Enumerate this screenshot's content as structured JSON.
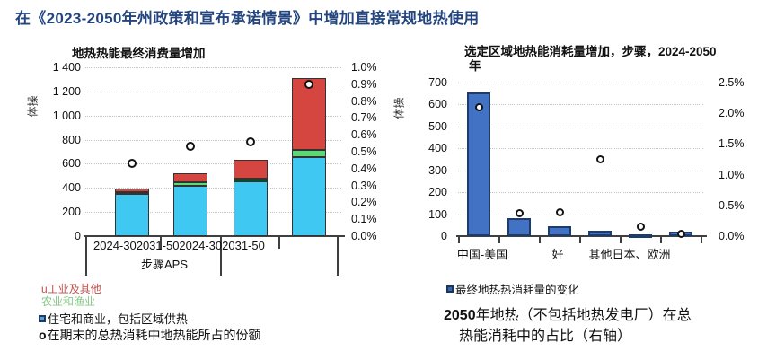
{
  "page_title": "在《2023-2050年州政策和宣布承诺情景》中增加直接常规地热使用",
  "chart_data": [
    {
      "type": "bar",
      "subtype": "stacked-with-share-markers",
      "title": "地热热能最终消费量增加",
      "ylabel": "体操",
      "categories": [
        "2024-30",
        "2031-50",
        "2024-30",
        "2031-50"
      ],
      "group_label": "步骤APS",
      "series": [
        {
          "name": "住宅和商业，包括区域供热",
          "color": "#3EC8F2",
          "values": [
            350,
            420,
            455,
            655
          ]
        },
        {
          "name": "农业和渔业",
          "color": "#5BD975",
          "values": [
            15,
            25,
            20,
            60
          ]
        },
        {
          "name": "工业及其他",
          "color": "#D64641",
          "values": [
            30,
            75,
            155,
            595
          ]
        }
      ],
      "totals": [
        395,
        520,
        630,
        1310
      ],
      "markers": {
        "name": "在期末的总热消耗中地热能所占的份额",
        "values_pct": [
          0.43,
          0.53,
          0.56,
          0.9
        ]
      },
      "axis_left": {
        "min": 0,
        "max": 1400,
        "step": 200,
        "tick_labels": [
          "1 400",
          "1 200",
          "1 000",
          "800",
          "600",
          "400",
          "200",
          "0"
        ]
      },
      "axis_right": {
        "min": 0,
        "max": 1.0,
        "step": 0.1,
        "tick_labels": [
          "1.0%",
          "0.9%",
          "0.8%",
          "0.7%",
          "0.6%",
          "0.5%",
          "0.4%",
          "0.3%",
          "0.2%",
          "0.1%",
          "0.0%"
        ]
      },
      "grid": "dotted-horizontal"
    },
    {
      "type": "bar",
      "subtype": "single-series-with-share-markers",
      "title_line1": "选定区域地热能消耗量增加，步骤，2024-2050",
      "title_line2": "年",
      "ylabel": "体操",
      "bar_color": "#4272C4",
      "bar_border": "#1C3C6E",
      "values": [
        655,
        80,
        45,
        25,
        8,
        20
      ],
      "markers_pct": [
        2.1,
        0.38,
        0.39,
        1.25,
        0.15,
        0.04
      ],
      "x_labels": [
        "中国-美国",
        "好",
        "其他日本、欧洲"
      ],
      "axis_left": {
        "min": 0,
        "max": 700,
        "step": 100,
        "tick_labels": [
          "700",
          "600",
          "500",
          "400",
          "300",
          "200",
          "100",
          "0"
        ]
      },
      "axis_right": {
        "min": 0,
        "max": 2.5,
        "step": 0.5,
        "tick_labels": [
          "2.5%",
          "2.0%",
          "1.5%",
          "1.0%",
          "0.5%",
          "0.0%"
        ]
      },
      "grid": "dotted-horizontal"
    }
  ],
  "legend_left": [
    {
      "bullet": "u",
      "text": "工业及其他",
      "color": "#C0504D"
    },
    {
      "bullet": "",
      "text": "农业和渔业",
      "color": "#85C985"
    },
    {
      "bullet": "square",
      "text": "住宅和商业，包括区域供热",
      "color": "#111111"
    },
    {
      "bullet": "o",
      "text": "在期末的总热消耗中地热能所占的份额",
      "color": "#111111"
    }
  ],
  "legend_right": {
    "bullet": "square",
    "text": "最终地热热消耗量的变化"
  },
  "caption_right": {
    "line1_bold": "2050",
    "line1_rest": "年地热（不包括地热发电厂）在总",
    "line2": "热能消耗中的占比（右轴）"
  },
  "colors": {
    "title_blue": "#24457E",
    "cyan_bar": "#3EC8F2",
    "green_bar": "#5BD975",
    "red_bar": "#D64641",
    "blue_bar": "#4272C4",
    "axis": "#3F3F3F",
    "gridline": "#C4C4C4",
    "marker_fill": "#FFFFFF",
    "marker_border": "#131313"
  }
}
